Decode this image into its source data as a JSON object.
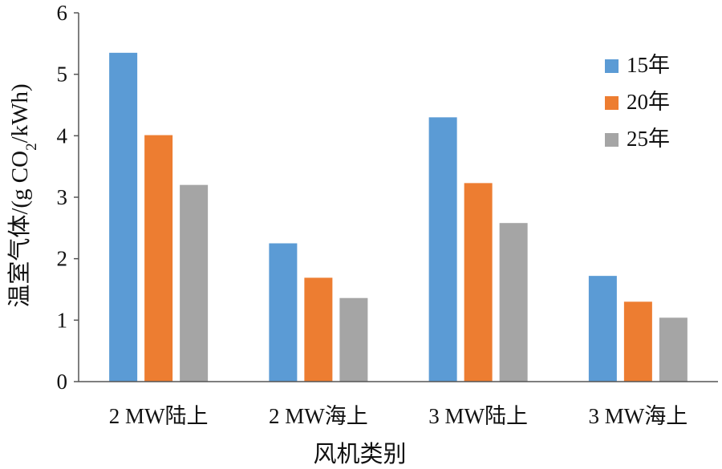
{
  "chart_data": {
    "type": "bar",
    "xlabel": "风机类别",
    "ylabel": "温室气体/(g CO2/kWh)",
    "ylabel_parts": {
      "pre": "温室气体/(g CO",
      "sub": "2",
      "post": "/kWh)"
    },
    "categories": [
      "2 MW陆上",
      "2 MW海上",
      "3 MW陆上",
      "3 MW海上"
    ],
    "series": [
      {
        "name": "15年",
        "color": "#5b9bd5",
        "values": [
          5.35,
          2.25,
          4.3,
          1.72
        ]
      },
      {
        "name": "20年",
        "color": "#ed7d31",
        "values": [
          4.01,
          1.69,
          3.23,
          1.3
        ]
      },
      {
        "name": "25年",
        "color": "#a5a5a5",
        "values": [
          3.2,
          1.36,
          2.58,
          1.04
        ]
      }
    ],
    "ylim": [
      0,
      6
    ],
    "yticks": [
      "0",
      "1",
      "2",
      "3",
      "4",
      "5",
      "6"
    ],
    "grid": false,
    "legend_position": "top-right"
  }
}
